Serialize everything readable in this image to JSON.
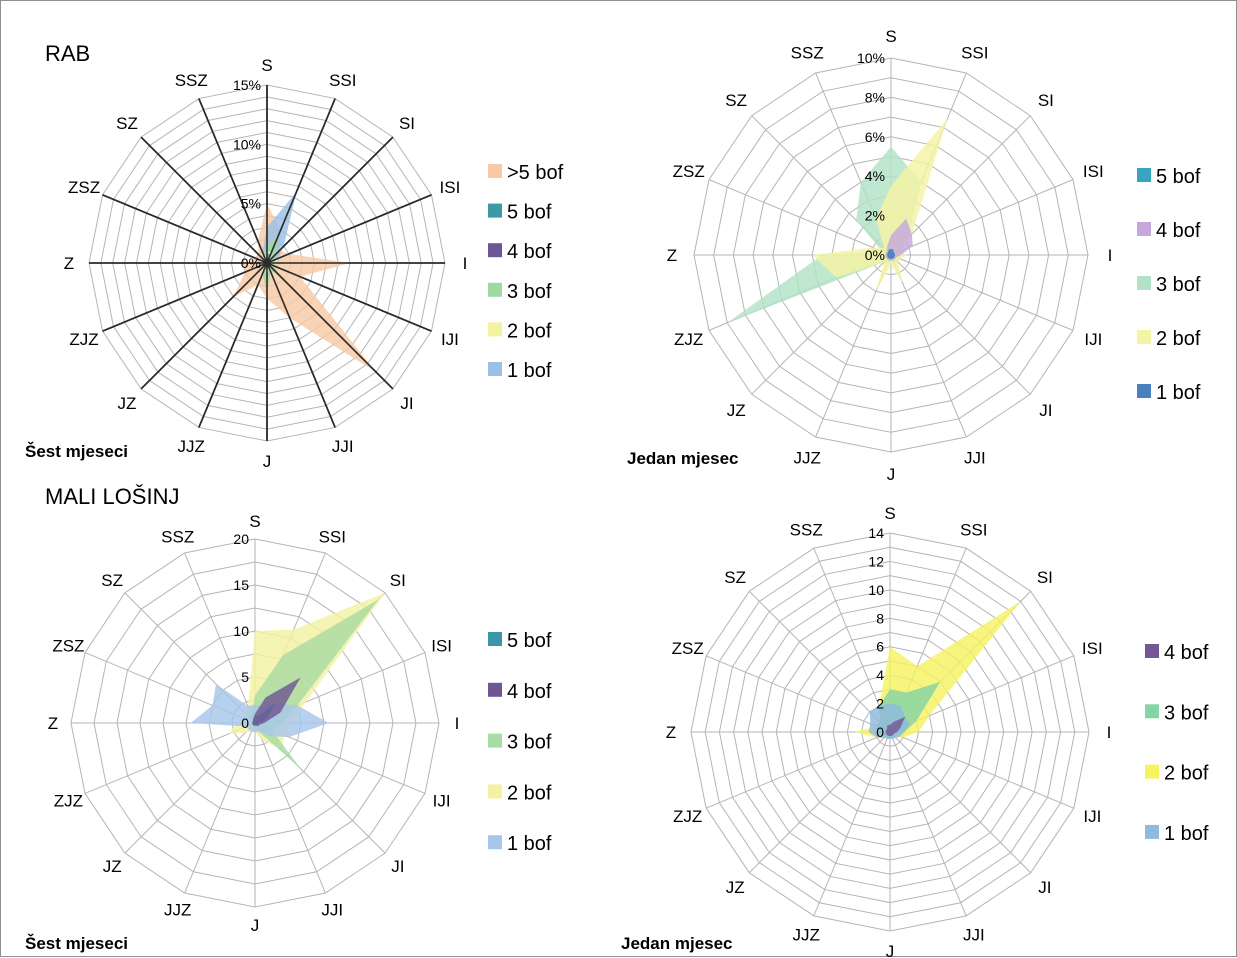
{
  "sections": [
    {
      "title": "RAB"
    },
    {
      "title": "MALI LOŠINJ"
    }
  ],
  "chart_data": [
    {
      "type": "radar",
      "section": "RAB",
      "period": "Šest mjeseci",
      "directions": [
        "S",
        "SSI",
        "SI",
        "ISI",
        "I",
        "IJI",
        "JI",
        "JJI",
        "J",
        "JJZ",
        "JZ",
        "ZJZ",
        "Z",
        "ZSZ",
        "SZ",
        "SSZ"
      ],
      "ticks": [
        "0%",
        "5%",
        "10%",
        "15%"
      ],
      "rmax": 15,
      "ring_count": 15,
      "radial_lines": "dark",
      "legend_position": "right",
      "legend": [
        ">5 bof",
        "5 bof",
        "4 bof",
        "3 bof",
        "2 bof",
        "1 bof"
      ],
      "series": [
        {
          "name": ">5 bof",
          "color": "#f7c9a6",
          "values": [
            5,
            3,
            1.5,
            2,
            7,
            3,
            13,
            5,
            3,
            2,
            4,
            2,
            2,
            1,
            1,
            2
          ]
        },
        {
          "name": "1 bof",
          "color": "#9bbfe6",
          "values": [
            3,
            6.5,
            2,
            1,
            0.5,
            0.5,
            0.5,
            0.5,
            1,
            0.5,
            0.5,
            0.5,
            0.5,
            0.5,
            0.5,
            1
          ]
        },
        {
          "name": "3 bof",
          "color": "#9ed9a2",
          "values": [
            1.5,
            2.5,
            1.2,
            0.8,
            0.6,
            0.8,
            1.2,
            0.8,
            2.5,
            1,
            0.5,
            0.5,
            0.5,
            0.5,
            0.5,
            0.8
          ]
        },
        {
          "name": "2 bof",
          "color": "#f4f1a0",
          "values": [
            1,
            1,
            0.5,
            0.5,
            0.5,
            0.5,
            0.5,
            0.5,
            1,
            0.5,
            0.5,
            0.5,
            0.5,
            0.5,
            0.5,
            0.5
          ]
        },
        {
          "name": "5 bof",
          "color": "#3c9aa6",
          "values": [
            0.8,
            0.8,
            0.3,
            0.3,
            0.3,
            0.3,
            0.5,
            0.3,
            0.8,
            0.3,
            0.3,
            0.3,
            0.3,
            0.3,
            0.3,
            0.3
          ]
        },
        {
          "name": "4 bof",
          "color": "#6e5596",
          "values": [
            0.5,
            0.5,
            0.2,
            0.2,
            0.2,
            0.2,
            0.3,
            0.2,
            0.5,
            0.2,
            0.2,
            0.2,
            0.2,
            0.2,
            0.2,
            0.2
          ]
        }
      ]
    },
    {
      "type": "radar",
      "section": "RAB",
      "period": "Jedan mjesec",
      "directions": [
        "S",
        "SSI",
        "SI",
        "ISI",
        "I",
        "IJI",
        "JI",
        "JJI",
        "J",
        "JJZ",
        "JZ",
        "ZJZ",
        "Z",
        "ZSZ",
        "SZ",
        "SSZ"
      ],
      "ticks": [
        "0%",
        "2%",
        "4%",
        "6%",
        "8%",
        "10%"
      ],
      "rmax": 10,
      "ring_count": 10,
      "radial_lines": "light",
      "legend_position": "right",
      "legend": [
        "5 bof",
        "4 bof",
        "3 bof",
        "2 bof",
        "1 bof"
      ],
      "series": [
        {
          "name": "3 bof",
          "color": "#b2e3c6",
          "values": [
            5.5,
            4,
            1.2,
            0.5,
            0.5,
            0.5,
            0.5,
            0.5,
            0.5,
            0.5,
            0.5,
            9,
            3.5,
            0.5,
            2.5,
            4
          ]
        },
        {
          "name": "2 bof",
          "color": "#f5f3a4",
          "values": [
            3.5,
            7.5,
            1.5,
            0.5,
            0.8,
            0.5,
            0.5,
            1.5,
            0.5,
            2,
            0.5,
            3,
            4,
            1,
            0.5,
            2
          ]
        },
        {
          "name": "4 bof",
          "color": "#c6a8dd",
          "values": [
            1,
            2,
            1.5,
            1.2,
            0.5,
            0.3,
            0.3,
            0.3,
            0.3,
            0.3,
            0.3,
            0.3,
            0.3,
            0.3,
            0.3,
            0.5
          ]
        },
        {
          "name": "5 bof",
          "color": "#37a5bf",
          "values": [
            0.3,
            0.3,
            0.2,
            0.2,
            0.2,
            0.2,
            0.2,
            0.2,
            0.2,
            0.2,
            0.2,
            0.2,
            0.2,
            0.2,
            0.2,
            0.3
          ]
        },
        {
          "name": "1 bof",
          "color": "#4a7fc0",
          "values": [
            0.3,
            0.3,
            0.2,
            0.2,
            0.2,
            0.2,
            0.2,
            0.2,
            0.2,
            0.2,
            0.2,
            0.2,
            0.2,
            0.2,
            0.2,
            0.3
          ]
        }
      ]
    },
    {
      "type": "radar",
      "section": "MALI LOŠINJ",
      "period": "Šest mjeseci",
      "directions": [
        "S",
        "SSI",
        "SI",
        "ISI",
        "I",
        "IJI",
        "JI",
        "JJI",
        "J",
        "JJZ",
        "JZ",
        "ZJZ",
        "Z",
        "ZSZ",
        "SZ",
        "SSZ"
      ],
      "ticks": [
        "0",
        "5",
        "10",
        "15",
        "20"
      ],
      "rmax": 20,
      "ring_count": 8,
      "radial_lines": "light",
      "legend_position": "right",
      "legend": [
        "5 bof",
        "4 bof",
        "3 bof",
        "2 bof",
        "1 bof"
      ],
      "series": [
        {
          "name": "2 bof",
          "color": "#f4f2a2",
          "values": [
            10,
            11,
            20,
            6,
            4,
            3.5,
            4,
            2,
            1,
            1,
            1.5,
            3,
            2,
            1.5,
            1.5,
            2
          ]
        },
        {
          "name": "3 bof",
          "color": "#a9dca4",
          "values": [
            3,
            8,
            19,
            5,
            3,
            2,
            7,
            1,
            0.5,
            0.5,
            0.5,
            0.5,
            0.5,
            0.5,
            1,
            1
          ]
        },
        {
          "name": "1 bof",
          "color": "#a6c7ea",
          "values": [
            2,
            2,
            3,
            5,
            8,
            4,
            2,
            1,
            1,
            1,
            1,
            1,
            7,
            5,
            6,
            2
          ]
        },
        {
          "name": "5 bof",
          "color": "#3a97a8",
          "values": [
            0.8,
            0.8,
            3,
            1.5,
            0.5,
            0.3,
            0.3,
            0.3,
            0.3,
            0.3,
            0.3,
            0.3,
            0.3,
            0.3,
            0.3,
            0.5
          ]
        },
        {
          "name": "4 bof",
          "color": "#6f5793",
          "values": [
            1,
            3,
            7,
            3,
            1,
            0.5,
            0.5,
            0.3,
            0.3,
            0.3,
            0.3,
            0.3,
            0.3,
            0.3,
            0.3,
            0.5
          ]
        }
      ]
    },
    {
      "type": "radar",
      "section": "MALI LOŠINJ",
      "period": "Jedan mjesec",
      "directions": [
        "S",
        "SSI",
        "SI",
        "ISI",
        "I",
        "IJI",
        "JI",
        "JJI",
        "J",
        "JJZ",
        "JZ",
        "ZJZ",
        "Z",
        "ZSZ",
        "SZ",
        "SSZ"
      ],
      "ticks": [
        "0",
        "2",
        "4",
        "6",
        "8",
        "10",
        "12",
        "14"
      ],
      "rmax": 14,
      "ring_count": 14,
      "radial_lines": "light",
      "legend_position": "right",
      "legend": [
        "4 bof",
        "3 bof",
        "2 bof",
        "1 bof"
      ],
      "series": [
        {
          "name": "2 bof",
          "color": "#f5f360",
          "values": [
            6,
            5,
            13,
            3,
            2,
            1,
            0.5,
            0.5,
            0.5,
            0.5,
            0.5,
            1,
            2.5,
            1,
            1,
            2
          ]
        },
        {
          "name": "3 bof",
          "color": "#85d4a6",
          "values": [
            3,
            3,
            5,
            2,
            1,
            0.5,
            0.5,
            0.5,
            0.5,
            0.5,
            0.5,
            0.5,
            1,
            1,
            1,
            2
          ]
        },
        {
          "name": "1 bof",
          "color": "#8fbadf",
          "values": [
            2,
            2,
            1.5,
            1.5,
            1,
            0.8,
            0.6,
            0.5,
            0.5,
            0.5,
            0.6,
            1,
            1.5,
            1.5,
            2,
            2
          ]
        },
        {
          "name": "4 bof",
          "color": "#735894",
          "values": [
            0.5,
            0.8,
            1.5,
            0.8,
            0.5,
            0.3,
            0.3,
            0.3,
            0.3,
            0.3,
            0.3,
            0.3,
            0.3,
            0.3,
            0.3,
            0.5
          ]
        }
      ]
    }
  ]
}
